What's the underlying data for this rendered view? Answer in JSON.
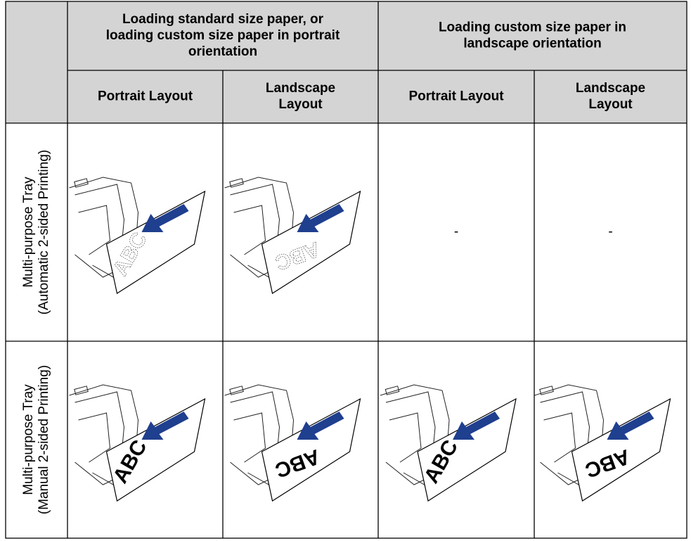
{
  "table": {
    "group_headers": [
      [
        "Loading standard size paper, or",
        "loading custom size paper in portrait",
        "orientation"
      ],
      [
        "Loading custom size paper in",
        "landscape orientation"
      ]
    ],
    "sub_headers": [
      [
        "Portrait Layout"
      ],
      [
        "Landscape",
        "Layout"
      ],
      [
        "Portrait Layout"
      ],
      [
        "Landscape",
        "Layout"
      ]
    ],
    "rows": [
      {
        "label": [
          "Multi-purpose Tray",
          "(Automatic 2-sided Printing)"
        ],
        "cells": [
          {
            "paper_text": "ABC",
            "style": "outline"
          },
          {
            "paper_text": "ABC",
            "style": "outline"
          },
          {
            "text": "-"
          },
          {
            "text": "-"
          }
        ]
      },
      {
        "label": [
          "Multi-purpose Tray",
          "(Manual 2-sided Printing)"
        ],
        "cells": [
          {
            "paper_text": "ABC",
            "style": "solid"
          },
          {
            "paper_text": "ABC",
            "style": "solid"
          },
          {
            "paper_text": "ABC",
            "style": "solid"
          },
          {
            "paper_text": "ABC",
            "style": "solid"
          }
        ]
      }
    ]
  }
}
